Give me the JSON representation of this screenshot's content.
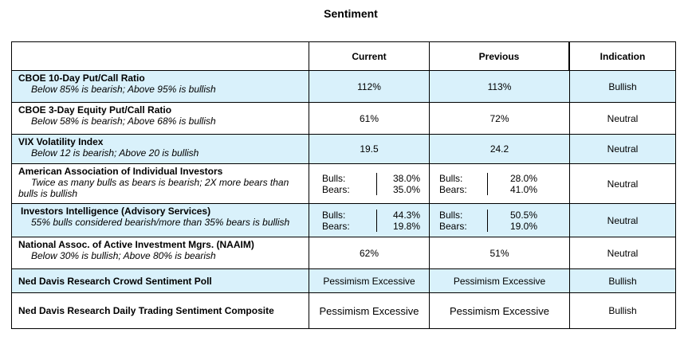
{
  "title": "Sentiment",
  "headers": {
    "current": "Current",
    "previous": "Previous",
    "indication": "Indication"
  },
  "rows": [
    {
      "name": "CBOE 10-Day Put/Call Ratio",
      "desc": "Below 85% is bearish; Above 95% is bullish",
      "current": "112%",
      "previous": "113%",
      "indication": "Bullish"
    },
    {
      "name": "CBOE 3-Day Equity Put/Call Ratio",
      "desc": "Below 58% is bearish; Above 68% is bullish",
      "current": "61%",
      "previous": "72%",
      "indication": "Neutral"
    },
    {
      "name": "VIX Volatility Index",
      "desc": "Below 12 is bearish; Above 20 is bullish",
      "current": "19.5",
      "previous": "24.2",
      "indication": "Neutral"
    },
    {
      "name": "American Association of Individual Investors",
      "desc1": "Twice as many bulls as bears is bearish; 2X more bears than",
      "desc2": "bulls is bullish",
      "current": {
        "bulls_label": "Bulls:",
        "bulls": "38.0%",
        "bears_label": "Bears:",
        "bears": "35.0%"
      },
      "previous": {
        "bulls_label": "Bulls:",
        "bulls": "28.0%",
        "bears_label": "Bears:",
        "bears": "41.0%"
      },
      "indication": "Neutral"
    },
    {
      "name": "Investors Intelligence (Advisory Services)",
      "desc": "55% bulls considered bearish/more than 35% bears is bullish",
      "current": {
        "bulls_label": "Bulls:",
        "bulls": "44.3%",
        "bears_label": "Bears:",
        "bears": "19.8%"
      },
      "previous": {
        "bulls_label": "Bulls:",
        "bulls": "50.5%",
        "bears_label": "Bears:",
        "bears": "19.0%"
      },
      "indication": "Neutral"
    },
    {
      "name": "National Assoc. of Active Investment Mgrs. (NAAIM)",
      "desc": "Below 30% is bullish; Above 80% is bearish",
      "current": "62%",
      "previous": "51%",
      "indication": "Neutral"
    },
    {
      "name": "Ned Davis Research Crowd Sentiment Poll",
      "current": "Pessimism Excessive",
      "previous": "Pessimism Excessive",
      "indication": "Bullish"
    },
    {
      "name": "Ned Davis Research Daily Trading Sentiment Composite",
      "current": "Pessimism Excessive",
      "previous": "Pessimism Excessive",
      "indication": "Bullish"
    }
  ],
  "colors": {
    "shade": "#d9f1fb",
    "border": "#000000"
  }
}
